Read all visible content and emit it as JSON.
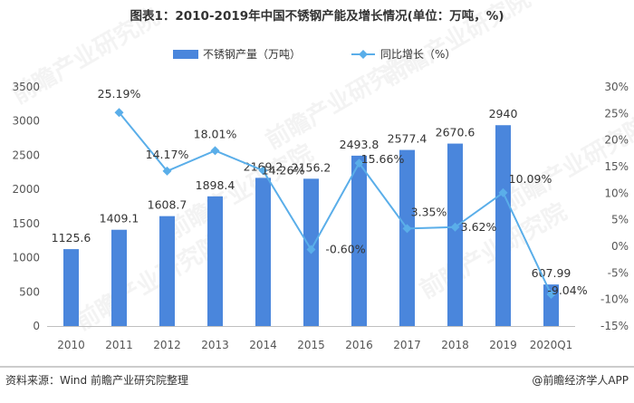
{
  "chart_data": {
    "type": "bar+line",
    "title": "图表1：2010-2019年中国不锈钢产能及增长情况(单位：万吨，%)",
    "categories": [
      "2010",
      "2011",
      "2012",
      "2013",
      "2014",
      "2015",
      "2016",
      "2017",
      "2018",
      "2019",
      "2020Q1"
    ],
    "series": [
      {
        "name": "不锈钢产量（万吨）",
        "type": "bar",
        "axis": "left",
        "values": [
          1125.6,
          1409.1,
          1608.7,
          1898.4,
          2169.2,
          2156.2,
          2493.8,
          2577.4,
          2670.6,
          2940,
          607.99
        ],
        "labels": [
          "1125.6",
          "1409.1",
          "1608.7",
          "1898.4",
          "2169.2",
          "2156.2",
          "2493.8",
          "2577.4",
          "2670.6",
          "2940",
          "607.99"
        ]
      },
      {
        "name": "同比增长（%）",
        "type": "line",
        "axis": "right",
        "values": [
          null,
          25.19,
          14.17,
          18.01,
          14.26,
          -0.6,
          15.66,
          3.35,
          3.62,
          10.09,
          -9.04
        ],
        "labels": [
          "",
          "25.19%",
          "14.17%",
          "18.01%",
          "14.26%",
          "-0.60%",
          "15.66%",
          "3.35%",
          "3.62%",
          "10.09%",
          "-9.04%"
        ]
      }
    ],
    "y_left": {
      "lim": [
        0,
        3500
      ],
      "ticks": [
        0,
        500,
        1000,
        1500,
        2000,
        2500,
        3000,
        3500
      ],
      "tick_labels": [
        "0",
        "500",
        "1000",
        "1500",
        "2000",
        "2500",
        "3000",
        "3500"
      ]
    },
    "y_right": {
      "lim": [
        -15,
        30
      ],
      "ticks": [
        -15,
        -10,
        -5,
        0,
        5,
        10,
        15,
        20,
        25,
        30
      ],
      "tick_labels": [
        "-15%",
        "-10%",
        "-5%",
        "0%",
        "5%",
        "10%",
        "15%",
        "20%",
        "25%",
        "30%"
      ]
    },
    "legend_position": "top-center",
    "source": "资料来源：Wind 前瞻产业研究院整理",
    "credit": "@前瞻经济学人APP",
    "watermark": "前瞻产业研究院",
    "colors": {
      "bar": "#4a86dc",
      "line": "#5aaee9",
      "marker": "#5aaee9",
      "text": "#333333",
      "axis_text": "#555555",
      "axis_line": "#bfbfbf",
      "footer_line": "#999999"
    }
  }
}
